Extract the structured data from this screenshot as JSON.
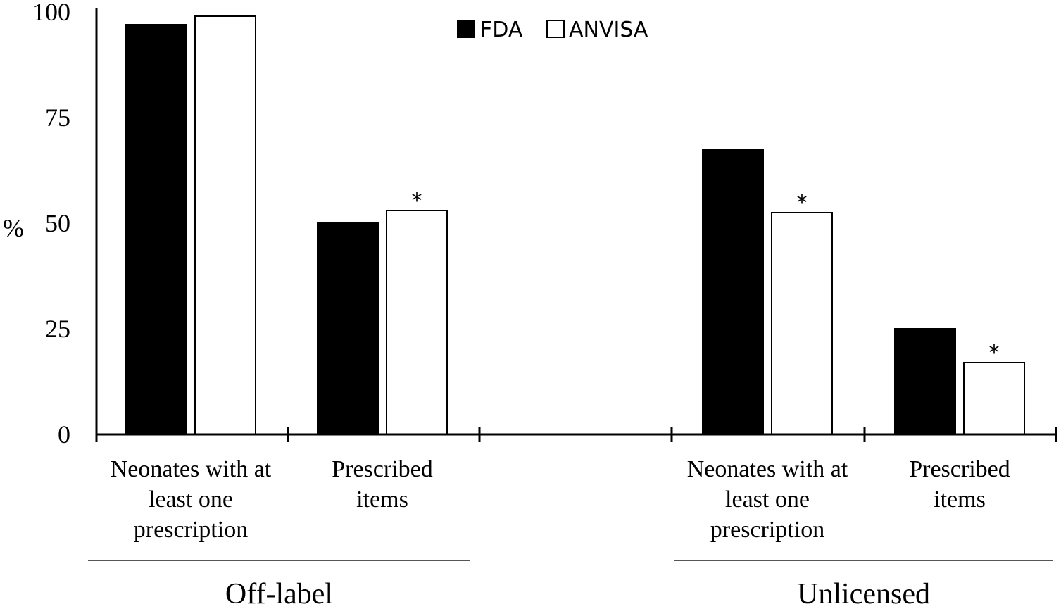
{
  "chart_data": {
    "type": "bar",
    "ylabel": "%",
    "ylim": [
      0,
      100
    ],
    "yticks": [
      "0",
      "25",
      "50",
      "75",
      "100"
    ],
    "grid": false,
    "legend_position": "top-center",
    "series": [
      {
        "name": "FDA",
        "color": "#000000",
        "values": [
          97,
          50,
          67.5,
          25
        ]
      },
      {
        "name": "ANVISA",
        "color": "#ffffff",
        "values": [
          99,
          53,
          52.5,
          17
        ]
      }
    ],
    "categories": [
      {
        "lines": [
          "Neonates with at",
          "least one",
          "prescription"
        ],
        "group": 0
      },
      {
        "lines": [
          "Prescribed",
          "items"
        ],
        "group": 0
      },
      {
        "lines": [
          "Neonates with at",
          "least one",
          "prescription"
        ],
        "group": 1
      },
      {
        "lines": [
          "Prescribed",
          "items"
        ],
        "group": 1
      }
    ],
    "groups": [
      "Off-label",
      "Unlicensed"
    ],
    "annotations": [
      {
        "series": 1,
        "category": 1,
        "text": "*"
      },
      {
        "series": 1,
        "category": 2,
        "text": "*"
      },
      {
        "series": 1,
        "category": 3,
        "text": "*"
      }
    ]
  }
}
